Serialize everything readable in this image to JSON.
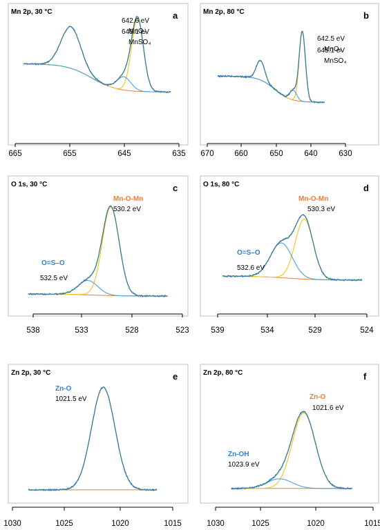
{
  "colors": {
    "raw": "#2e6fc4",
    "fit": "#7dbb3c",
    "component1": "#f2c419",
    "component2": "#45a3da",
    "background": "#ee7d31",
    "label_blue": "#2f7fd0",
    "label_orange": "#ee7d31"
  },
  "chart_data": [
    {
      "id": "a",
      "type": "line",
      "title": "Mn 2p, 30 °C",
      "letter": "a",
      "xlim": [
        665,
        635
      ],
      "xticks": [
        "665",
        "655",
        "645",
        "635"
      ],
      "ylim": [
        0,
        100
      ],
      "baseline": {
        "low": 13,
        "high": 45,
        "center": 651,
        "width": 2.3
      },
      "peaks": [
        {
          "role": "component1",
          "center": 642.6,
          "sigma": 1.1,
          "height": 82
        },
        {
          "role": "component2",
          "center": 645.1,
          "sigma": 1.3,
          "height": 15
        },
        {
          "role": "satellite",
          "center": 654.8,
          "sigma": 1.8,
          "height": 47
        }
      ],
      "range": [
        663.5,
        636.5
      ],
      "annotations": [
        {
          "lines": [
            "642.6 eV",
            "MnO₂"
          ],
          "color": "black"
        },
        {
          "lines": [
            "645.1 eV",
            "MnSO₄"
          ],
          "color": "black"
        }
      ]
    },
    {
      "id": "b",
      "type": "line",
      "title": "Mn 2p, 80 °C",
      "letter": "b",
      "xlim": [
        670,
        630
      ],
      "xticks": [
        "670",
        "660",
        "650",
        "640",
        "630"
      ],
      "ylim": [
        0,
        100
      ],
      "baseline": {
        "low": 10,
        "high": 42,
        "center": 650.5,
        "width": 2.3
      },
      "peaks": [
        {
          "role": "component1",
          "center": 642.5,
          "sigma": 0.9,
          "height": 86
        },
        {
          "role": "component2",
          "center": 645.1,
          "sigma": 1.0,
          "height": 12
        },
        {
          "role": "satellite",
          "center": 654.6,
          "sigma": 1.2,
          "height": 24
        }
      ],
      "range": [
        667,
        636
      ],
      "annotations": [
        {
          "lines": [
            "642.5 eV",
            "MnO₂"
          ],
          "color": "black"
        },
        {
          "lines": [
            "645.1 eV",
            "MnSO₄"
          ],
          "color": "black"
        }
      ]
    },
    {
      "id": "c",
      "type": "line",
      "title": "O 1s, 30 °C",
      "letter": "c",
      "xlim": [
        539.5,
        522.5
      ],
      "xticks": [
        "538",
        "533",
        "528",
        "523"
      ],
      "ylim": [
        0,
        100
      ],
      "baseline": {
        "low": 2,
        "high": 4,
        "center": 532,
        "width": 1.5
      },
      "peaks": [
        {
          "role": "component1",
          "center": 530.2,
          "sigma": 0.85,
          "height": 86
        },
        {
          "role": "component2",
          "center": 532.5,
          "sigma": 1.0,
          "height": 14
        }
      ],
      "range": [
        538.5,
        524.5
      ],
      "annotations": [
        {
          "lines": [
            "Mn-O-Mn"
          ],
          "color": "orange"
        },
        {
          "lines": [
            "530.2 eV"
          ],
          "color": "black"
        },
        {
          "lines": [
            "O=S–O"
          ],
          "color": "blue"
        },
        {
          "lines": [
            "532.5 eV"
          ],
          "color": "black"
        }
      ]
    },
    {
      "id": "d",
      "type": "line",
      "title": "O 1s, 80 °C",
      "letter": "d",
      "xlim": [
        539.5,
        523.5
      ],
      "xticks": [
        "539",
        "534",
        "529",
        "524"
      ],
      "ylim": [
        0,
        100
      ],
      "baseline": {
        "low": 3,
        "high": 7,
        "center": 532,
        "width": 1.5
      },
      "peaks": [
        {
          "role": "component1",
          "center": 530.3,
          "sigma": 0.9,
          "height": 62
        },
        {
          "role": "component2",
          "center": 532.6,
          "sigma": 1.1,
          "height": 36
        }
      ],
      "range": [
        538.5,
        524.5
      ],
      "annotations": [
        {
          "lines": [
            "Mn-O-Mn"
          ],
          "color": "orange"
        },
        {
          "lines": [
            "530.3 eV"
          ],
          "color": "black"
        },
        {
          "lines": [
            "O=S–O"
          ],
          "color": "blue"
        },
        {
          "lines": [
            "532.6 eV"
          ],
          "color": "black"
        }
      ]
    },
    {
      "id": "e",
      "type": "line",
      "title": "Zn 2p, 30 °C",
      "letter": "e",
      "xlim": [
        1030,
        1015
      ],
      "xticks": [
        "1030",
        "1025",
        "1020",
        "1015"
      ],
      "ylim": [
        0,
        100
      ],
      "baseline": {
        "low": 3,
        "high": 3,
        "center": 1022,
        "width": 1.5
      },
      "peaks": [
        {
          "role": "component2",
          "center": 1021.5,
          "sigma": 1.1,
          "height": 88
        }
      ],
      "range": [
        1028.5,
        1016.5
      ],
      "annotations": [
        {
          "lines": [
            "Zn-O"
          ],
          "color": "blue"
        },
        {
          "lines": [
            "1021.5 eV"
          ],
          "color": "black"
        }
      ]
    },
    {
      "id": "f",
      "type": "line",
      "title": "Zn 2p, 80 °C",
      "letter": "f",
      "xlim": [
        1030,
        1015
      ],
      "xticks": [
        "1030",
        "1025",
        "1020",
        "1015"
      ],
      "ylim": [
        0,
        100
      ],
      "baseline": {
        "low": 3,
        "high": 3,
        "center": 1022,
        "width": 1.5
      },
      "peaks": [
        {
          "role": "component1",
          "center": 1021.6,
          "sigma": 1.1,
          "height": 78
        },
        {
          "role": "component2",
          "center": 1023.9,
          "sigma": 1.2,
          "height": 10
        }
      ],
      "range": [
        1028.5,
        1017.0
      ],
      "annotations": [
        {
          "lines": [
            "Zn-O"
          ],
          "color": "orange"
        },
        {
          "lines": [
            "1021.6 eV"
          ],
          "color": "black"
        },
        {
          "lines": [
            "Zn-OH"
          ],
          "color": "blue"
        },
        {
          "lines": [
            "1023.9  eV"
          ],
          "color": "black"
        }
      ]
    }
  ]
}
